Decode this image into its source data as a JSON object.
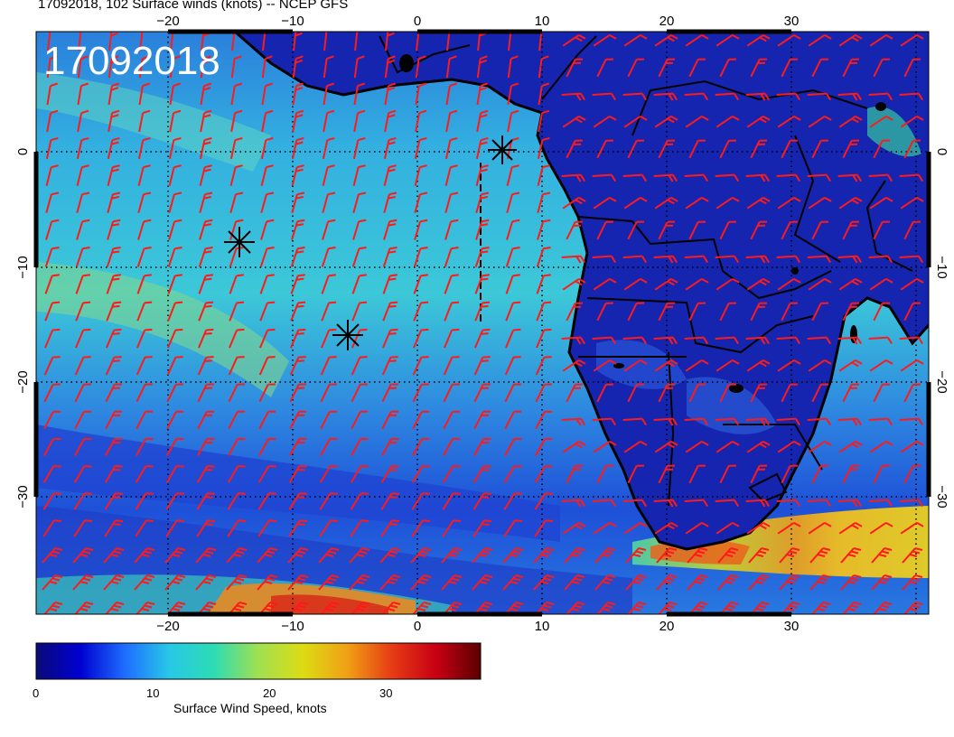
{
  "header": {
    "title": "17092018, 102 Surface winds (knots) -- NCEP GFS",
    "date_stamp": "17092018"
  },
  "map": {
    "lon_range": [
      -30,
      40
    ],
    "lat_range": [
      -40,
      10
    ],
    "lon_ticks": [
      -20,
      -10,
      0,
      10,
      20,
      30
    ],
    "lat_ticks": [
      0,
      -10,
      -20,
      -30
    ],
    "lon_tick_labels": [
      "−20",
      "−10",
      "0",
      "10",
      "20",
      "30"
    ],
    "lat_tick_labels": [
      "0",
      "−10",
      "−20",
      "−30"
    ],
    "barb_color": "#ff1a1a",
    "coast_color": "#000000"
  },
  "colorbar": {
    "label": "Surface Wind Speed, knots",
    "min": 0,
    "max": 38,
    "tick_values": [
      0,
      10,
      20,
      30
    ],
    "tick_labels": [
      "0",
      "10",
      "20",
      "30"
    ],
    "colors": [
      "#0a0a78",
      "#0000d2",
      "#1e6eff",
      "#28c8e6",
      "#2ddcb4",
      "#a0e050",
      "#dcdc14",
      "#f0a014",
      "#e63c14",
      "#c80014",
      "#5a0000"
    ]
  }
}
